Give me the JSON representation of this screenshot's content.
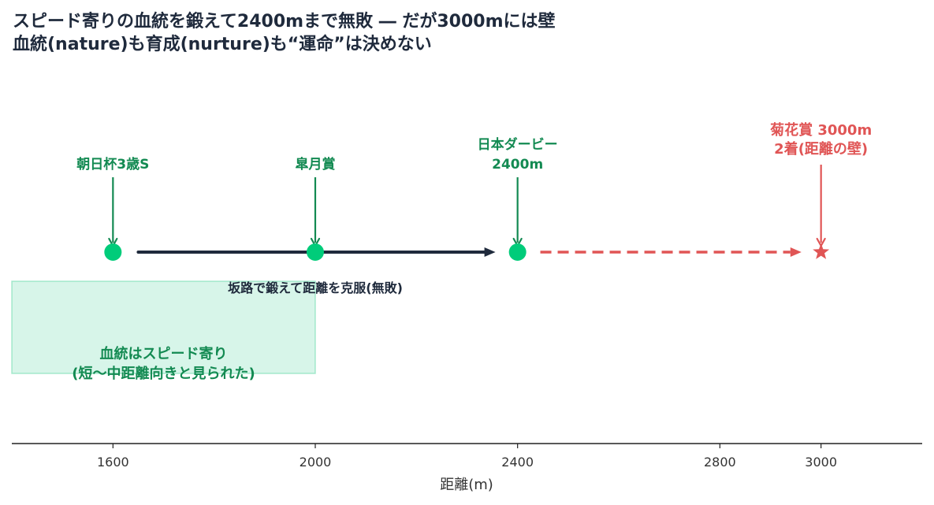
{
  "chart_data": {
    "type": "scatter",
    "title_lines": [
      "スピード寄りの血統を鍛えて2400mまで無敗 ― だが3000mには壁",
      "血統(nature)も育成(nurture)も“運命”は決めない"
    ],
    "xlabel": "距離(m)",
    "xlim": [
      1400,
      3200
    ],
    "xticks": [
      1600,
      2000,
      2400,
      2800,
      3000
    ],
    "tick_labels": [
      "1600",
      "2000",
      "2400",
      "2800",
      "3000"
    ],
    "points": [
      {
        "x": 1600,
        "label_lines": [
          "朝日杯3歳S"
        ],
        "color": "#00cc7a",
        "marker": "circle",
        "label_color": "#138a52"
      },
      {
        "x": 2000,
        "label_lines": [
          "皐月賞"
        ],
        "color": "#00cc7a",
        "marker": "circle",
        "label_color": "#138a52"
      },
      {
        "x": 2400,
        "label_lines": [
          "日本ダービー",
          "2400m"
        ],
        "color": "#00cc7a",
        "marker": "circle",
        "label_color": "#138a52"
      },
      {
        "x": 3000,
        "label_lines": [
          "菊花賞 3000m",
          "2着(距離の壁)"
        ],
        "color": "#e05555",
        "marker": "star",
        "label_color": "#e05555"
      }
    ],
    "solid_arrow": {
      "from": 1650,
      "to": 2350,
      "color": "#1f2a3c"
    },
    "solid_arrow_label": "坂路で鍛えて距離を克服(無敗)",
    "dashed_arrow": {
      "from": 2445,
      "to": 2955,
      "color": "#e05555"
    },
    "shaded_region": {
      "x_from": 1400,
      "x_to": 2000,
      "color": "#5ed9a6"
    },
    "shaded_label_lines": [
      "血統はスピード寄り",
      "(短〜中距離向きと見られた)"
    ],
    "grid": false,
    "legend": "none"
  }
}
